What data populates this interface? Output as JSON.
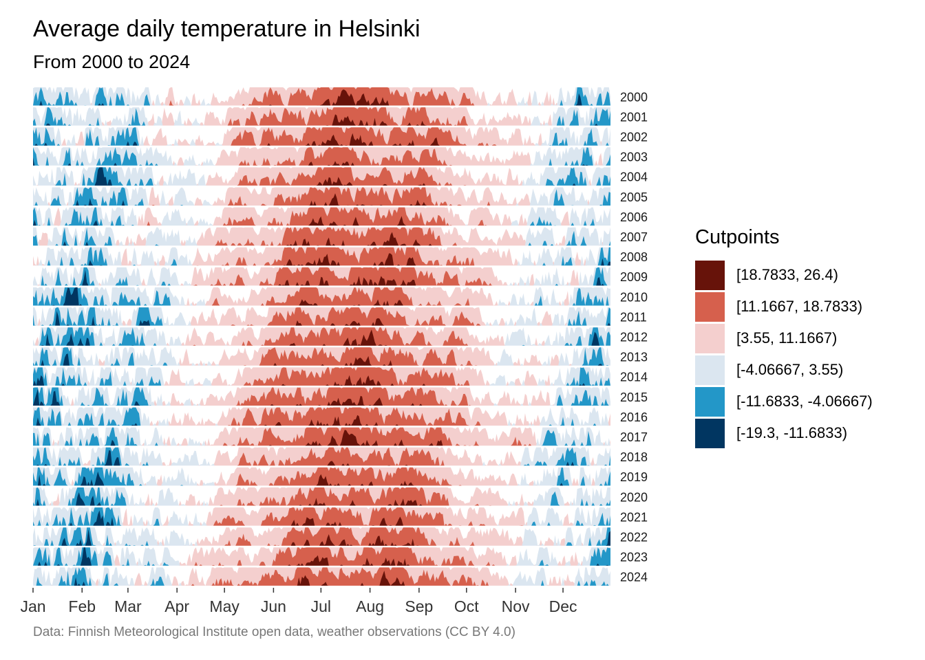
{
  "header": {
    "title": "Average daily temperature in Helsinki",
    "subtitle": "From 2000 to 2024"
  },
  "caption": "Data: Finnish Meteorological Institute open data, weather observations (CC BY 4.0)",
  "legend": {
    "title": "Cutpoints",
    "items": [
      {
        "label": "[18.7833, 26.4)",
        "color": "#67130A"
      },
      {
        "label": "[11.1667, 18.7833)",
        "color": "#D6604D"
      },
      {
        "label": "[3.55, 11.1667)",
        "color": "#F4CFCE"
      },
      {
        "label": "[-4.06667, 3.55)",
        "color": "#DBE6F0"
      },
      {
        "label": "[-11.6833, -4.06667)",
        "color": "#2397C8"
      },
      {
        "label": "[-19.3, -11.6833)",
        "color": "#013661"
      }
    ]
  },
  "chart_data": {
    "type": "area",
    "title": "Average daily temperature in Helsinki",
    "subtitle": "From 2000 to 2024",
    "xlabel": "",
    "ylabel": "",
    "x_ticks": [
      "Jan",
      "Feb",
      "Mar",
      "Apr",
      "May",
      "Jun",
      "Jul",
      "Aug",
      "Sep",
      "Oct",
      "Nov",
      "Dec"
    ],
    "rows": [
      "2000",
      "2001",
      "2002",
      "2003",
      "2004",
      "2005",
      "2006",
      "2007",
      "2008",
      "2009",
      "2010",
      "2011",
      "2012",
      "2013",
      "2014",
      "2015",
      "2016",
      "2017",
      "2018",
      "2019",
      "2020",
      "2021",
      "2022",
      "2023",
      "2024"
    ],
    "y_unit_range": [
      -19.3,
      26.4
    ],
    "cutpoints": [
      -19.3,
      -11.6833,
      -4.06667,
      3.55,
      11.1667,
      18.7833,
      26.4
    ],
    "legend_position": "right",
    "grid": false
  }
}
